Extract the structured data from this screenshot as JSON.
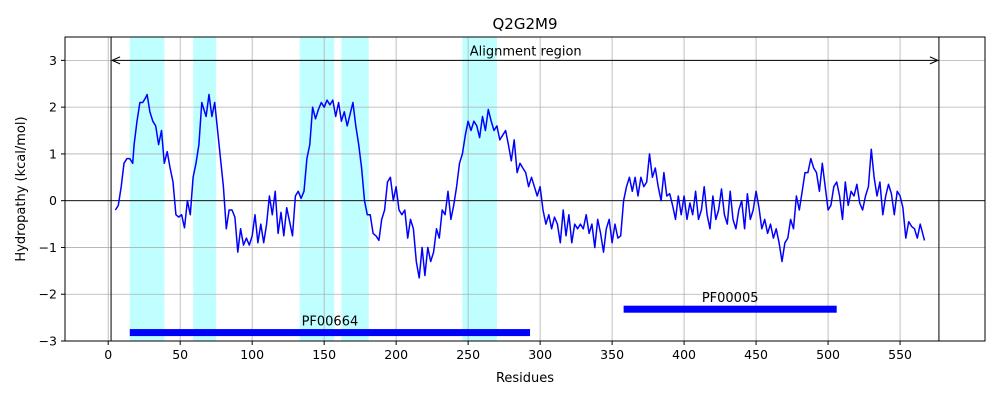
{
  "chart_data": {
    "type": "line",
    "title": "Q2G2M9",
    "xlabel": "Residues",
    "ylabel": "Hydropathy (kcal/mol)",
    "xlim": [
      -30,
      609
    ],
    "ylim": [
      -3,
      3.5
    ],
    "xticks": [
      0,
      50,
      100,
      150,
      200,
      250,
      300,
      350,
      400,
      450,
      500,
      550
    ],
    "yticks": [
      -3,
      -2,
      -1,
      0,
      1,
      2,
      3
    ],
    "grid": true,
    "colors": {
      "line": "#0000ff",
      "band": "#00ffff",
      "bar": "#0000ff",
      "grid": "#b0b0b0",
      "axis": "#000000"
    },
    "series": [
      {
        "points": [
          [
            5,
            -0.2
          ],
          [
            7,
            -0.1
          ],
          [
            9,
            0.3
          ],
          [
            11,
            0.8
          ],
          [
            13,
            0.9
          ],
          [
            15,
            0.9
          ],
          [
            17,
            0.8
          ],
          [
            18,
            1.2
          ],
          [
            20,
            1.7
          ],
          [
            22,
            2.1
          ],
          [
            24,
            2.1
          ],
          [
            26,
            2.2
          ],
          [
            27,
            2.27
          ],
          [
            29,
            1.9
          ],
          [
            31,
            1.7
          ],
          [
            33,
            1.6
          ],
          [
            35,
            1.2
          ],
          [
            37,
            1.5
          ],
          [
            39,
            0.8
          ],
          [
            41,
            1.05
          ],
          [
            43,
            0.7
          ],
          [
            45,
            0.4
          ],
          [
            47,
            -0.3
          ],
          [
            49,
            -0.35
          ],
          [
            51,
            -0.3
          ],
          [
            53,
            -0.58
          ],
          [
            55,
            0.0
          ],
          [
            57,
            -0.3
          ],
          [
            59,
            0.5
          ],
          [
            61,
            0.8
          ],
          [
            63,
            1.2
          ],
          [
            65,
            2.1
          ],
          [
            66,
            2.0
          ],
          [
            68,
            1.8
          ],
          [
            70,
            2.27
          ],
          [
            72,
            1.8
          ],
          [
            74,
            2.1
          ],
          [
            76,
            1.5
          ],
          [
            78,
            0.9
          ],
          [
            80,
            0.3
          ],
          [
            82,
            -0.6
          ],
          [
            84,
            -0.2
          ],
          [
            86,
            -0.2
          ],
          [
            88,
            -0.35
          ],
          [
            90,
            -1.1
          ],
          [
            92,
            -0.6
          ],
          [
            94,
            -0.95
          ],
          [
            96,
            -0.8
          ],
          [
            98,
            -0.95
          ],
          [
            100,
            -0.75
          ],
          [
            102,
            -0.3
          ],
          [
            104,
            -0.9
          ],
          [
            106,
            -0.5
          ],
          [
            108,
            -0.9
          ],
          [
            110,
            -0.5
          ],
          [
            112,
            0.1
          ],
          [
            114,
            -0.3
          ],
          [
            116,
            0.2
          ],
          [
            118,
            -0.7
          ],
          [
            120,
            -0.25
          ],
          [
            122,
            -0.75
          ],
          [
            124,
            -0.15
          ],
          [
            126,
            -0.45
          ],
          [
            128,
            -0.75
          ],
          [
            130,
            0.1
          ],
          [
            132,
            0.2
          ],
          [
            134,
            0.05
          ],
          [
            136,
            0.2
          ],
          [
            138,
            0.9
          ],
          [
            140,
            1.2
          ],
          [
            142,
            2.0
          ],
          [
            144,
            1.75
          ],
          [
            146,
            1.95
          ],
          [
            148,
            2.1
          ],
          [
            150,
            2.0
          ],
          [
            152,
            2.15
          ],
          [
            154,
            2.05
          ],
          [
            156,
            2.15
          ],
          [
            158,
            1.8
          ],
          [
            160,
            2.1
          ],
          [
            162,
            1.7
          ],
          [
            164,
            1.9
          ],
          [
            166,
            1.6
          ],
          [
            168,
            1.85
          ],
          [
            170,
            2.1
          ],
          [
            172,
            1.6
          ],
          [
            174,
            1.2
          ],
          [
            176,
            0.7
          ],
          [
            178,
            0.0
          ],
          [
            180,
            -0.3
          ],
          [
            182,
            -0.3
          ],
          [
            184,
            -0.7
          ],
          [
            186,
            -0.75
          ],
          [
            188,
            -0.85
          ],
          [
            190,
            -0.4
          ],
          [
            192,
            -0.2
          ],
          [
            194,
            0.4
          ],
          [
            196,
            0.5
          ],
          [
            198,
            0.0
          ],
          [
            200,
            0.3
          ],
          [
            202,
            -0.2
          ],
          [
            204,
            -0.3
          ],
          [
            206,
            -0.2
          ],
          [
            208,
            -0.8
          ],
          [
            210,
            -0.4
          ],
          [
            212,
            -0.6
          ],
          [
            214,
            -1.3
          ],
          [
            216,
            -1.65
          ],
          [
            218,
            -1.0
          ],
          [
            220,
            -1.6
          ],
          [
            222,
            -1.0
          ],
          [
            224,
            -1.3
          ],
          [
            226,
            -1.1
          ],
          [
            228,
            -0.6
          ],
          [
            230,
            -0.8
          ],
          [
            232,
            -0.2
          ],
          [
            234,
            -0.3
          ],
          [
            236,
            0.2
          ],
          [
            238,
            -0.4
          ],
          [
            240,
            -0.1
          ],
          [
            242,
            0.3
          ],
          [
            244,
            0.8
          ],
          [
            246,
            1.0
          ],
          [
            248,
            1.4
          ],
          [
            250,
            1.7
          ],
          [
            252,
            1.5
          ],
          [
            254,
            1.7
          ],
          [
            256,
            1.6
          ],
          [
            258,
            1.35
          ],
          [
            260,
            1.8
          ],
          [
            262,
            1.5
          ],
          [
            264,
            1.95
          ],
          [
            266,
            1.7
          ],
          [
            268,
            1.5
          ],
          [
            270,
            1.6
          ],
          [
            272,
            1.3
          ],
          [
            274,
            1.4
          ],
          [
            276,
            1.5
          ],
          [
            278,
            1.2
          ],
          [
            280,
            0.85
          ],
          [
            282,
            1.3
          ],
          [
            284,
            0.6
          ],
          [
            286,
            0.8
          ],
          [
            288,
            0.7
          ],
          [
            290,
            0.6
          ],
          [
            292,
            0.3
          ],
          [
            294,
            0.5
          ],
          [
            296,
            0.3
          ],
          [
            298,
            0.1
          ],
          [
            300,
            0.3
          ],
          [
            302,
            -0.2
          ],
          [
            304,
            -0.5
          ],
          [
            306,
            -0.3
          ],
          [
            308,
            -0.6
          ],
          [
            310,
            -0.35
          ],
          [
            312,
            -0.5
          ],
          [
            314,
            -0.9
          ],
          [
            316,
            -0.2
          ],
          [
            318,
            -0.75
          ],
          [
            320,
            -0.3
          ],
          [
            322,
            -0.9
          ],
          [
            324,
            -0.5
          ],
          [
            326,
            -0.6
          ],
          [
            328,
            -0.5
          ],
          [
            330,
            -0.6
          ],
          [
            332,
            -0.3
          ],
          [
            334,
            -0.7
          ],
          [
            336,
            -0.5
          ],
          [
            338,
            -1.0
          ],
          [
            340,
            -0.4
          ],
          [
            342,
            -0.7
          ],
          [
            344,
            -1.1
          ],
          [
            346,
            -0.6
          ],
          [
            348,
            -0.4
          ],
          [
            350,
            -0.9
          ],
          [
            352,
            -0.5
          ],
          [
            354,
            -0.8
          ],
          [
            356,
            -0.75
          ],
          [
            358,
            0.0
          ],
          [
            360,
            0.3
          ],
          [
            362,
            0.5
          ],
          [
            364,
            0.2
          ],
          [
            366,
            0.5
          ],
          [
            368,
            0.1
          ],
          [
            370,
            0.5
          ],
          [
            372,
            0.3
          ],
          [
            374,
            0.4
          ],
          [
            376,
            1.0
          ],
          [
            378,
            0.5
          ],
          [
            380,
            0.7
          ],
          [
            382,
            0.3
          ],
          [
            384,
            0.0
          ],
          [
            386,
            0.6
          ],
          [
            388,
            0.1
          ],
          [
            390,
            0.15
          ],
          [
            392,
            -0.1
          ],
          [
            394,
            -0.4
          ],
          [
            396,
            0.1
          ],
          [
            398,
            -0.3
          ],
          [
            400,
            0.1
          ],
          [
            402,
            -0.4
          ],
          [
            404,
            -0.05
          ],
          [
            406,
            -0.3
          ],
          [
            408,
            0.2
          ],
          [
            410,
            -0.4
          ],
          [
            412,
            -0.2
          ],
          [
            414,
            0.3
          ],
          [
            416,
            -0.3
          ],
          [
            418,
            -0.6
          ],
          [
            420,
            0.1
          ],
          [
            422,
            -0.4
          ],
          [
            424,
            -0.2
          ],
          [
            426,
            0.25
          ],
          [
            428,
            -0.3
          ],
          [
            430,
            -0.5
          ],
          [
            432,
            0.2
          ],
          [
            434,
            -0.4
          ],
          [
            436,
            -0.6
          ],
          [
            438,
            -0.2
          ],
          [
            440,
            0.0
          ],
          [
            442,
            -0.6
          ],
          [
            444,
            0.15
          ],
          [
            446,
            -0.4
          ],
          [
            448,
            -0.2
          ],
          [
            450,
            0.2
          ],
          [
            452,
            -0.15
          ],
          [
            454,
            -0.6
          ],
          [
            456,
            -0.4
          ],
          [
            458,
            -0.7
          ],
          [
            460,
            -0.5
          ],
          [
            462,
            -0.8
          ],
          [
            464,
            -0.6
          ],
          [
            466,
            -0.9
          ],
          [
            468,
            -1.3
          ],
          [
            470,
            -0.9
          ],
          [
            472,
            -0.8
          ],
          [
            474,
            -0.4
          ],
          [
            476,
            -0.6
          ],
          [
            478,
            0.1
          ],
          [
            480,
            -0.2
          ],
          [
            482,
            0.2
          ],
          [
            484,
            0.6
          ],
          [
            486,
            0.6
          ],
          [
            488,
            0.9
          ],
          [
            490,
            0.7
          ],
          [
            492,
            0.6
          ],
          [
            494,
            0.2
          ],
          [
            496,
            0.8
          ],
          [
            498,
            0.3
          ],
          [
            500,
            -0.2
          ],
          [
            502,
            -0.1
          ],
          [
            504,
            0.3
          ],
          [
            506,
            0.4
          ],
          [
            508,
            0.1
          ],
          [
            510,
            -0.4
          ],
          [
            512,
            0.4
          ],
          [
            514,
            -0.1
          ],
          [
            516,
            0.2
          ],
          [
            518,
            0.1
          ],
          [
            520,
            0.35
          ],
          [
            522,
            -0.05
          ],
          [
            524,
            -0.2
          ],
          [
            526,
            0.1
          ],
          [
            528,
            0.3
          ],
          [
            530,
            1.1
          ],
          [
            532,
            0.5
          ],
          [
            534,
            0.1
          ],
          [
            536,
            0.4
          ],
          [
            538,
            -0.3
          ],
          [
            540,
            0.1
          ],
          [
            542,
            0.35
          ],
          [
            544,
            0.15
          ],
          [
            546,
            -0.3
          ],
          [
            548,
            0.2
          ],
          [
            550,
            0.1
          ],
          [
            552,
            -0.15
          ],
          [
            554,
            -0.8
          ],
          [
            556,
            -0.45
          ],
          [
            558,
            -0.55
          ],
          [
            560,
            -0.6
          ],
          [
            562,
            -0.8
          ],
          [
            564,
            -0.5
          ],
          [
            567,
            -0.85
          ]
        ]
      }
    ],
    "shaded_regions": [
      [
        15,
        39
      ],
      [
        59,
        75
      ],
      [
        133,
        157
      ],
      [
        162,
        181
      ],
      [
        246,
        270
      ]
    ],
    "vlines": [
      2,
      577
    ],
    "annotations": [
      {
        "text": "Alignment region",
        "x": 290,
        "y": 3.1,
        "arrow_from": 2,
        "arrow_to": 577,
        "arrow_y": 3
      }
    ],
    "domains": [
      {
        "label": "PF00664",
        "start": 15,
        "end": 293,
        "y": -2.82
      },
      {
        "label": "PF00005",
        "start": 358,
        "end": 506,
        "y": -2.32
      }
    ]
  }
}
